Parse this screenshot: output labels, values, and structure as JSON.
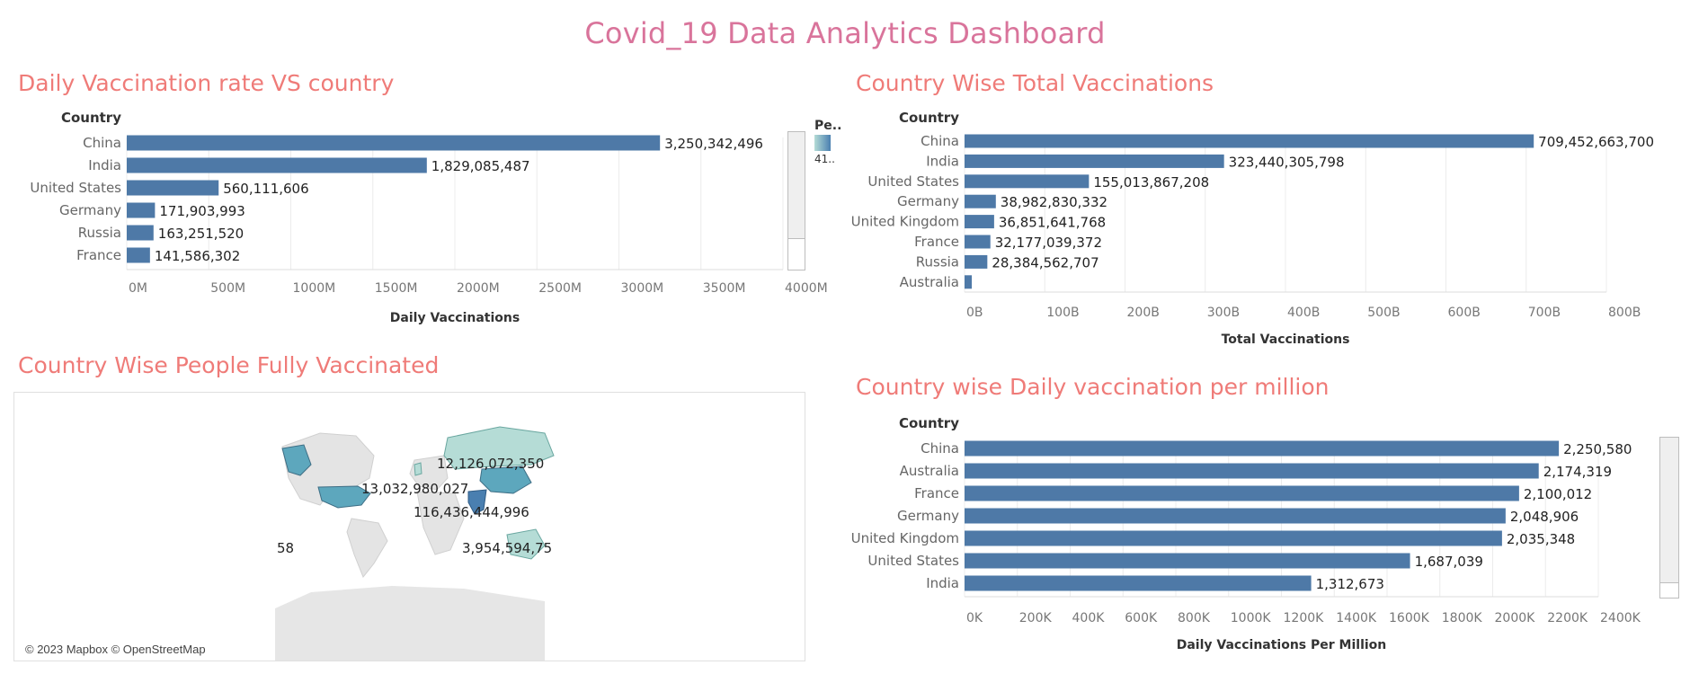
{
  "dashboard": {
    "title": "Covid_19 Data Analytics Dashboard"
  },
  "panels": {
    "daily": {
      "title": "Daily Vaccination rate VS country"
    },
    "total": {
      "title": "Country Wise Total Vaccinations"
    },
    "map": {
      "title": "Country Wise People Fully Vaccinated"
    },
    "permillion": {
      "title": "Country wise Daily vaccination per million"
    }
  },
  "map": {
    "attribution": "© 2023 Mapbox © OpenStreetMap",
    "labels": [
      "12,126,072,350",
      "13,032,980,027",
      "116,436,444,996",
      "3,954,594,75",
      "58"
    ]
  },
  "legend": {
    "label": "Pe..",
    "value": "41.."
  },
  "colors": {
    "bar": "#4e79a7",
    "title": "#ef7b78",
    "main_title": "#d9749b",
    "map_dark": "#4a7fb0",
    "map_mid": "#5da7bd",
    "map_light": "#b5dcd6"
  },
  "chart_data": [
    {
      "type": "bar",
      "orientation": "horizontal",
      "title": "Daily Vaccination rate VS country",
      "row_header": "Country",
      "xlabel": "Daily Vaccinations",
      "categories": [
        "China",
        "India",
        "United States",
        "Germany",
        "Russia",
        "France"
      ],
      "values": [
        3250342496,
        1829085487,
        560111606,
        171903993,
        163251520,
        141586302
      ],
      "data_labels": [
        "3,250,342,496",
        "1,829,085,487",
        "560,111,606",
        "171,903,993",
        "163,251,520",
        "141,586,302"
      ],
      "xlim": [
        0,
        4000000000
      ],
      "ticks": [
        0,
        500000000,
        1000000000,
        1500000000,
        2000000000,
        2500000000,
        3000000000,
        3500000000,
        4000000000
      ],
      "tick_labels": [
        "0M",
        "500M",
        "1000M",
        "1500M",
        "2000M",
        "2500M",
        "3000M",
        "3500M",
        "4000M"
      ],
      "grid": true
    },
    {
      "type": "bar",
      "orientation": "horizontal",
      "title": "Country Wise Total Vaccinations",
      "row_header": "Country",
      "xlabel": "Total Vaccinations",
      "categories": [
        "China",
        "India",
        "United States",
        "Germany",
        "United Kingdom",
        "France",
        "Russia",
        "Australia"
      ],
      "values": [
        709452663700,
        323440305798,
        155013867208,
        38982830332,
        36851641768,
        32177039372,
        28384562707,
        9000000000
      ],
      "data_labels": [
        "709,452,663,700",
        "323,440,305,798",
        "155,013,867,208",
        "38,982,830,332",
        "36,851,641,768",
        "32,177,039,372",
        "28,384,562,707",
        ""
      ],
      "xlim": [
        0,
        800000000000
      ],
      "ticks": [
        0,
        100000000000,
        200000000000,
        300000000000,
        400000000000,
        500000000000,
        600000000000,
        700000000000,
        800000000000
      ],
      "tick_labels": [
        "0B",
        "100B",
        "200B",
        "300B",
        "400B",
        "500B",
        "600B",
        "700B",
        "800B"
      ],
      "grid": true
    },
    {
      "type": "bar",
      "orientation": "horizontal",
      "title": "Country wise Daily vaccination per million",
      "row_header": "Country",
      "xlabel": "Daily Vaccinations Per Million",
      "categories": [
        "China",
        "Australia",
        "France",
        "Germany",
        "United Kingdom",
        "United States",
        "India"
      ],
      "values": [
        2250580,
        2174319,
        2100012,
        2048906,
        2035348,
        1687039,
        1312673
      ],
      "data_labels": [
        "2,250,580",
        "2,174,319",
        "2,100,012",
        "2,048,906",
        "2,035,348",
        "1,687,039",
        "1,312,673"
      ],
      "xlim": [
        0,
        2400000
      ],
      "ticks": [
        0,
        200000,
        400000,
        600000,
        800000,
        1000000,
        1200000,
        1400000,
        1600000,
        1800000,
        2000000,
        2200000,
        2400000
      ],
      "tick_labels": [
        "0K",
        "200K",
        "400K",
        "600K",
        "800K",
        "1000K",
        "1200K",
        "1400K",
        "1600K",
        "1800K",
        "2000K",
        "2200K",
        "2400K"
      ],
      "grid": true
    }
  ]
}
